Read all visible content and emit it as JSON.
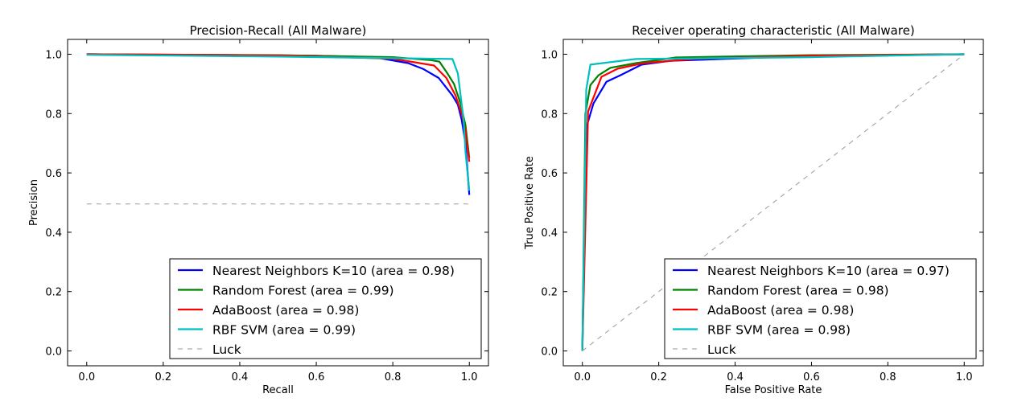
{
  "chart_data": [
    {
      "type": "line",
      "title": "Precision-Recall (All Malware)",
      "xlabel": "Recall",
      "ylabel": "Precision",
      "xlim": [
        -0.05,
        1.05
      ],
      "ylim": [
        -0.05,
        1.05
      ],
      "xticks": [
        "0.0",
        "0.2",
        "0.4",
        "0.6",
        "0.8",
        "1.0"
      ],
      "yticks": [
        "0.0",
        "0.2",
        "0.4",
        "0.6",
        "0.8",
        "1.0"
      ],
      "grid": false,
      "legend_position": "lower-right",
      "series": [
        {
          "name": "Nearest Neighbors K=10 (area = 0.98)",
          "color": "#0000ff",
          "style": "solid",
          "points": [
            [
              0,
              1.0
            ],
            [
              0.3,
              0.998
            ],
            [
              0.6,
              0.995
            ],
            [
              0.75,
              0.99
            ],
            [
              0.84,
              0.97
            ],
            [
              0.88,
              0.95
            ],
            [
              0.92,
              0.92
            ],
            [
              0.956,
              0.861
            ],
            [
              0.97,
              0.83
            ],
            [
              0.98,
              0.78
            ],
            [
              0.99,
              0.7
            ],
            [
              1.0,
              0.526
            ]
          ]
        },
        {
          "name": "Random Forest (area = 0.99)",
          "color": "#008000",
          "style": "solid",
          "points": [
            [
              0,
              1.0
            ],
            [
              0.5,
              0.997
            ],
            [
              0.8,
              0.99
            ],
            [
              0.9,
              0.98
            ],
            [
              0.922,
              0.975
            ],
            [
              0.943,
              0.935
            ],
            [
              0.96,
              0.9
            ],
            [
              0.977,
              0.834
            ],
            [
              0.99,
              0.76
            ],
            [
              1.0,
              0.65
            ]
          ]
        },
        {
          "name": "AdaBoost (area = 0.98)",
          "color": "#ff0000",
          "style": "solid",
          "points": [
            [
              0,
              1.0
            ],
            [
              0.5,
              0.996
            ],
            [
              0.8,
              0.985
            ],
            [
              0.87,
              0.97
            ],
            [
              0.908,
              0.962
            ],
            [
              0.94,
              0.92
            ],
            [
              0.964,
              0.861
            ],
            [
              0.98,
              0.8
            ],
            [
              0.99,
              0.74
            ],
            [
              1.0,
              0.638
            ]
          ]
        },
        {
          "name": "RBF SVM (area = 0.99)",
          "color": "#00bfbf",
          "style": "solid",
          "points": [
            [
              0,
              0.998
            ],
            [
              0.5,
              0.992
            ],
            [
              0.956,
              0.984
            ],
            [
              0.97,
              0.935
            ],
            [
              0.985,
              0.78
            ],
            [
              0.99,
              0.67
            ],
            [
              1.0,
              0.54
            ]
          ]
        },
        {
          "name": "Luck",
          "color": "#999999",
          "style": "dashed",
          "points": [
            [
              0,
              0.495
            ],
            [
              1.0,
              0.495
            ]
          ]
        }
      ]
    },
    {
      "type": "line",
      "title": "Receiver operating characteristic (All Malware)",
      "xlabel": "False Positive Rate",
      "ylabel": "True Positive Rate",
      "xlim": [
        -0.05,
        1.05
      ],
      "ylim": [
        -0.05,
        1.05
      ],
      "xticks": [
        "0.0",
        "0.2",
        "0.4",
        "0.6",
        "0.8",
        "1.0"
      ],
      "yticks": [
        "0.0",
        "0.2",
        "0.4",
        "0.6",
        "0.8",
        "1.0"
      ],
      "grid": false,
      "legend_position": "lower-right",
      "series": [
        {
          "name": "Nearest Neighbors K=10 (area = 0.97)",
          "color": "#0000ff",
          "style": "solid",
          "points": [
            [
              0,
              0
            ],
            [
              0.01,
              0.752
            ],
            [
              0.029,
              0.834
            ],
            [
              0.063,
              0.907
            ],
            [
              0.099,
              0.929
            ],
            [
              0.155,
              0.965
            ],
            [
              0.23,
              0.978
            ],
            [
              0.5,
              0.99
            ],
            [
              1,
              1
            ]
          ]
        },
        {
          "name": "Random Forest (area = 0.98)",
          "color": "#008000",
          "style": "solid",
          "points": [
            [
              0,
              0
            ],
            [
              0.008,
              0.8
            ],
            [
              0.021,
              0.896
            ],
            [
              0.042,
              0.929
            ],
            [
              0.073,
              0.954
            ],
            [
              0.14,
              0.97
            ],
            [
              0.245,
              0.989
            ],
            [
              0.6,
              0.997
            ],
            [
              1,
              1
            ]
          ]
        },
        {
          "name": "AdaBoost (area = 0.98)",
          "color": "#ff0000",
          "style": "solid",
          "points": [
            [
              0,
              0
            ],
            [
              0.015,
              0.807
            ],
            [
              0.05,
              0.924
            ],
            [
              0.092,
              0.951
            ],
            [
              0.16,
              0.97
            ],
            [
              0.3,
              0.985
            ],
            [
              0.6,
              0.995
            ],
            [
              1,
              1
            ]
          ]
        },
        {
          "name": "RBF SVM (area = 0.98)",
          "color": "#00bfbf",
          "style": "solid",
          "points": [
            [
              0,
              0
            ],
            [
              0.01,
              0.88
            ],
            [
              0.021,
              0.965
            ],
            [
              0.14,
              0.984
            ],
            [
              0.6,
              0.99
            ],
            [
              1,
              1.0
            ]
          ]
        },
        {
          "name": "Luck",
          "color": "#999999",
          "style": "dashed",
          "points": [
            [
              0,
              0
            ],
            [
              1,
              1
            ]
          ]
        }
      ]
    }
  ]
}
